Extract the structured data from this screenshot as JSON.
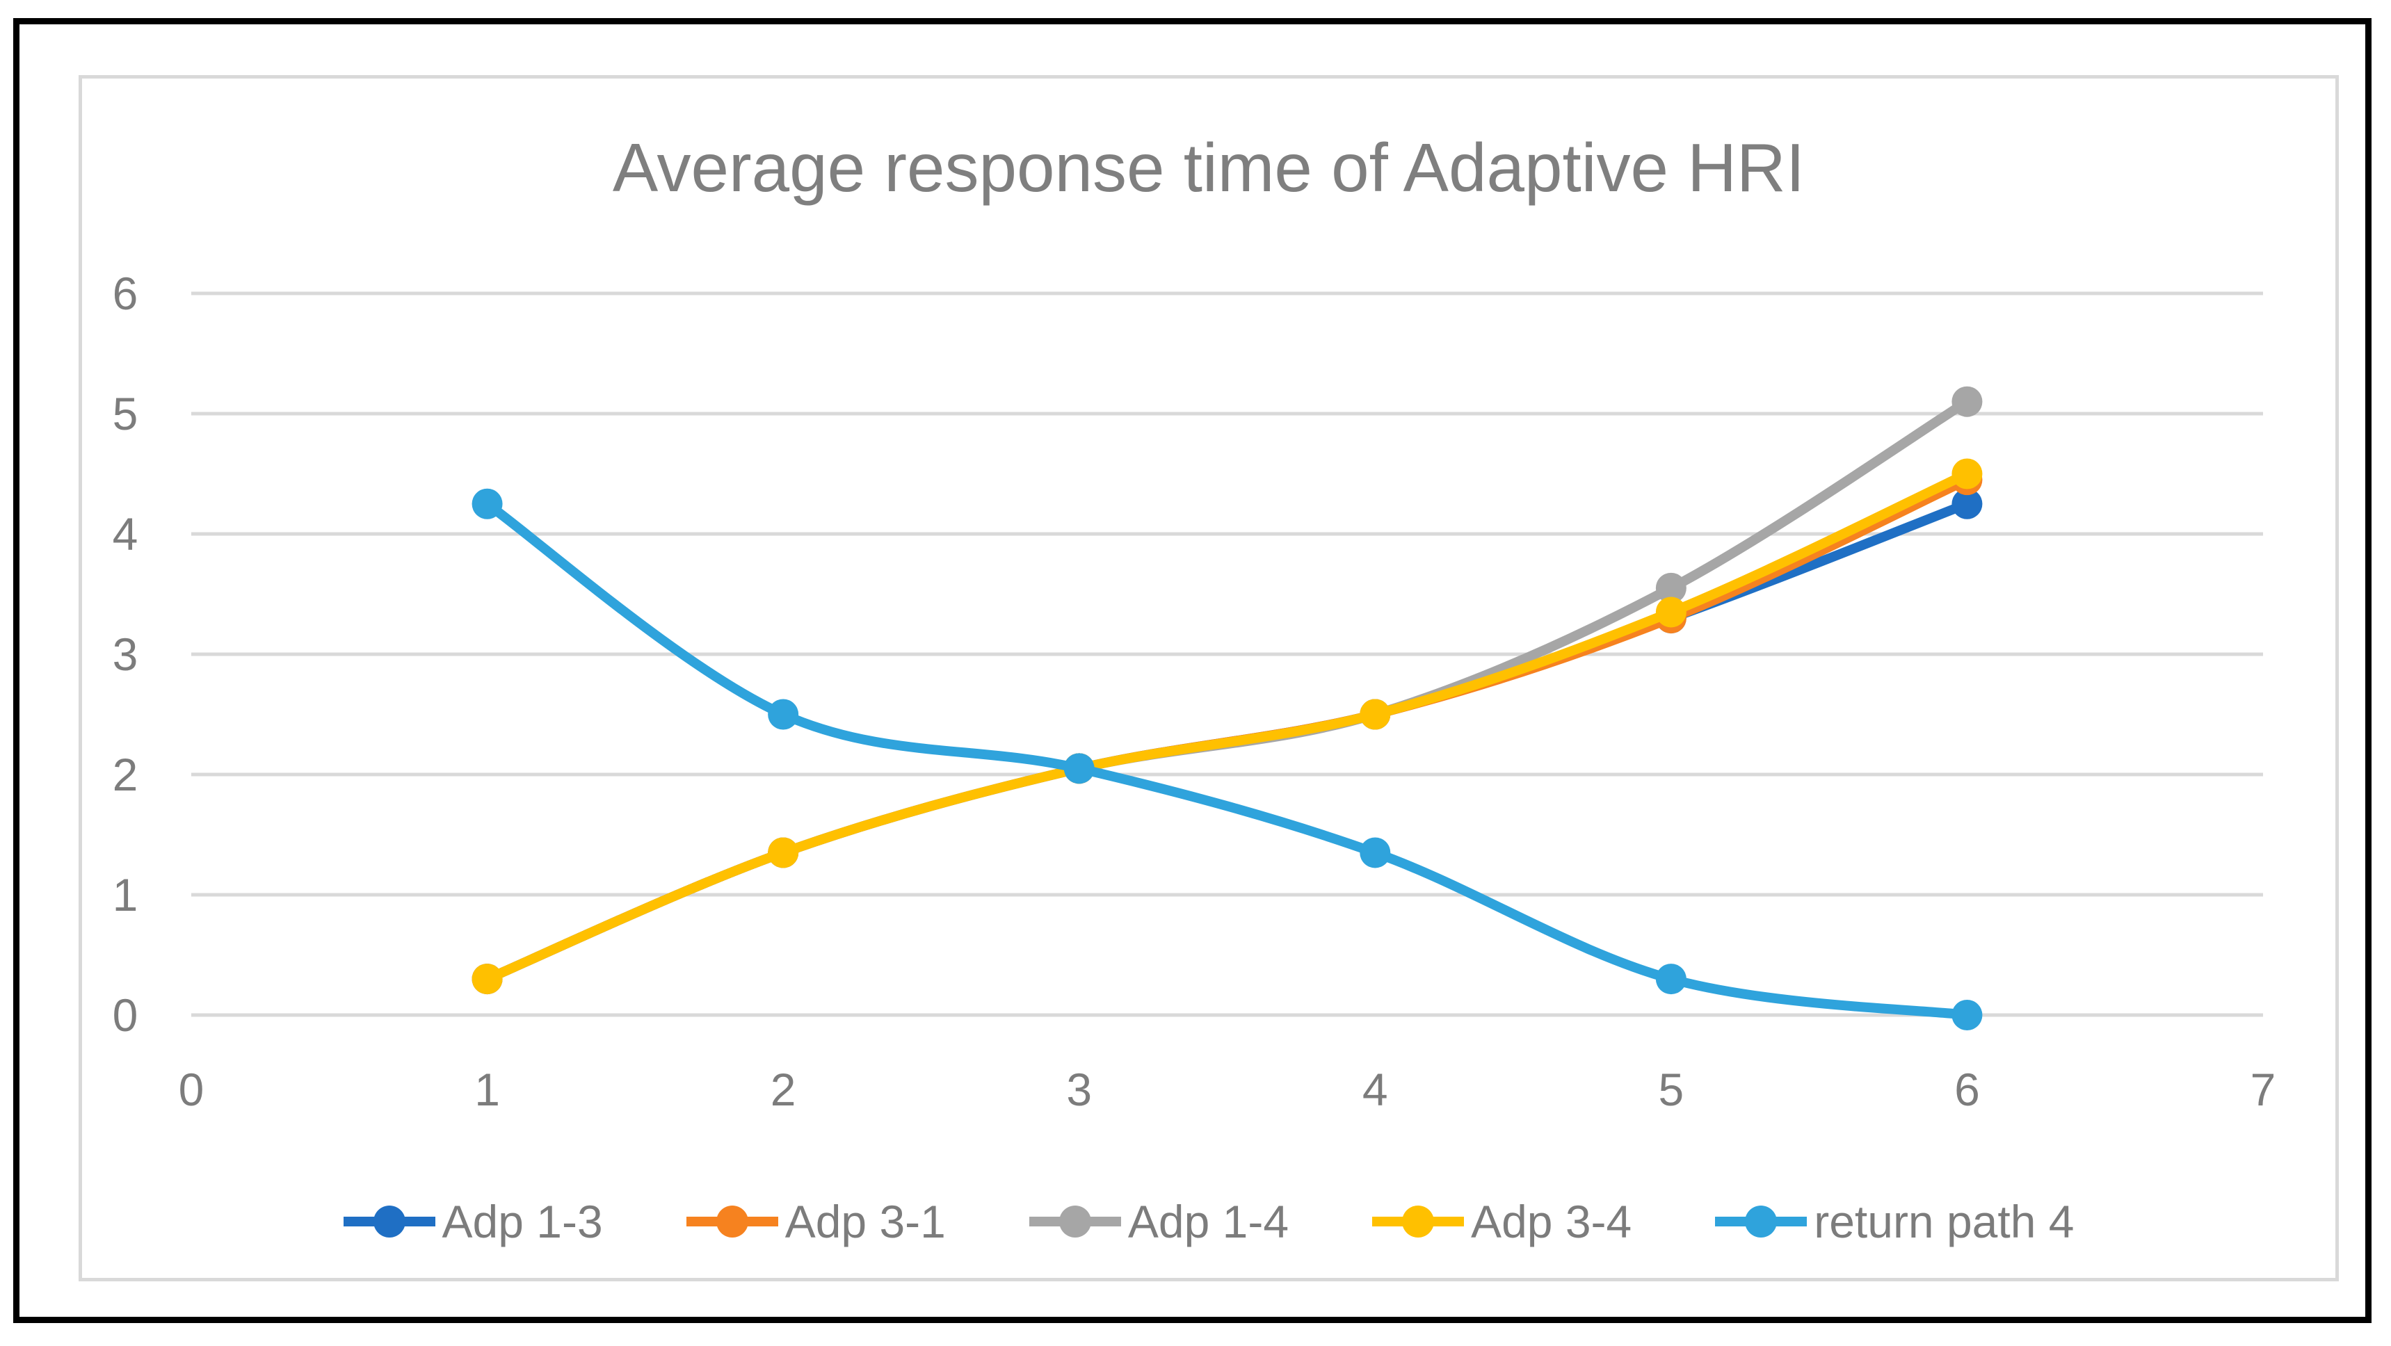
{
  "chart_data": {
    "type": "line",
    "title": "Average response time of Adaptive HRI",
    "x": [
      1,
      2,
      3,
      4,
      5,
      6
    ],
    "series": [
      {
        "name": "Adp 1-3",
        "color": "#1F6FC4",
        "values": [
          0.3,
          1.35,
          2.05,
          2.5,
          3.3,
          4.25
        ]
      },
      {
        "name": "Adp 3-1",
        "color": "#F6821F",
        "values": [
          0.3,
          1.35,
          2.05,
          2.5,
          3.3,
          4.45
        ]
      },
      {
        "name": "Adp 1-4",
        "color": "#A6A6A6",
        "values": [
          0.3,
          1.35,
          2.05,
          2.5,
          3.55,
          5.1
        ]
      },
      {
        "name": "Adp 3-4",
        "color": "#FFC000",
        "values": [
          0.3,
          1.35,
          2.05,
          2.5,
          3.35,
          4.5
        ]
      },
      {
        "name": "return path 4",
        "color": "#2FA3DC",
        "values": [
          4.25,
          2.5,
          2.05,
          1.35,
          0.3,
          0
        ]
      }
    ],
    "xlim": [
      0,
      7
    ],
    "ylim": [
      0,
      6
    ],
    "x_ticks": [
      0,
      1,
      2,
      3,
      4,
      5,
      6,
      7
    ],
    "y_ticks": [
      0,
      1,
      2,
      3,
      4,
      5,
      6
    ],
    "grid": "horizontal",
    "smooth": true,
    "marker": "circle",
    "legend_position": "bottom",
    "colors": {
      "grid": "#D9D9D9",
      "text": "#7C7C7C",
      "title_text": "#7F7F7F",
      "card_border": "#D9D9D9",
      "outer_frame": "#000000",
      "background": "#FFFFFF"
    }
  }
}
